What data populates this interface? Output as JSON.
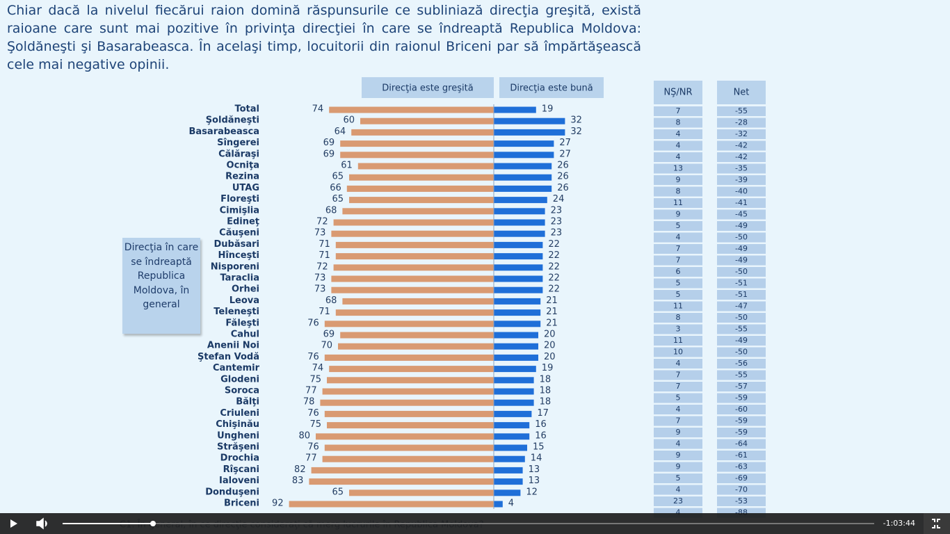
{
  "slide": {
    "title": "Chiar dacă la nivelul fiecărui raion domină răspunsurile ce subliniază direcţia greşită, există raioane care sunt mai pozitive în privinţa direcţiei în care se îndreaptă Republica Moldova: Şoldăneşti şi Basarabeasca. În acelaşi timp, locuitorii din raionul Briceni par să împărtăşească cele mai negative opinii.",
    "side_label": "Direcţia în care se îndreaptă Republica Moldova, în general",
    "footnote": "C1. În general, în ce direcţie consideraţi că merg lucrurile în Republica Moldova?"
  },
  "chart_data": {
    "type": "bar",
    "orientation": "diverging",
    "categories": [
      "Total",
      "Şoldăneşti",
      "Basarabeasca",
      "Sîngerei",
      "Călăraşi",
      "Ocniţa",
      "Rezina",
      "UTAG",
      "Floreşti",
      "Cimişlia",
      "Edineţ",
      "Căuşeni",
      "Dubăsari",
      "Hînceşti",
      "Nisporeni",
      "Taraclia",
      "Orhei",
      "Leova",
      "Teleneşti",
      "Făleşti",
      "Cahul",
      "Anenii Noi",
      "Ştefan Vodă",
      "Cantemir",
      "Glodeni",
      "Soroca",
      "Bălţi",
      "Criuleni",
      "Chişinău",
      "Ungheni",
      "Străşeni",
      "Drochia",
      "Rîşcani",
      "Ialoveni",
      "Donduşeni",
      "Briceni"
    ],
    "series": [
      {
        "name": "Direcţia este greşită",
        "color": "#d99a72",
        "side": "left",
        "values": [
          74,
          60,
          64,
          69,
          69,
          61,
          65,
          66,
          65,
          68,
          72,
          73,
          71,
          71,
          72,
          73,
          73,
          68,
          71,
          76,
          69,
          70,
          76,
          74,
          75,
          77,
          78,
          76,
          75,
          80,
          76,
          77,
          82,
          83,
          65,
          92
        ]
      },
      {
        "name": "Direcţia este bună",
        "color": "#1f6fd8",
        "side": "right",
        "values": [
          19,
          32,
          32,
          27,
          27,
          26,
          26,
          26,
          24,
          23,
          23,
          23,
          22,
          22,
          22,
          22,
          22,
          21,
          21,
          21,
          20,
          20,
          20,
          19,
          18,
          18,
          18,
          17,
          16,
          16,
          15,
          14,
          13,
          13,
          12,
          4
        ]
      }
    ]
  },
  "table": {
    "columns": [
      {
        "header": "NŞ/NR",
        "values": [
          7,
          8,
          4,
          4,
          4,
          13,
          9,
          8,
          11,
          9,
          5,
          4,
          7,
          7,
          6,
          5,
          5,
          11,
          8,
          3,
          11,
          10,
          4,
          7,
          7,
          5,
          4,
          7,
          9,
          4,
          9,
          9,
          5,
          4,
          23,
          4
        ]
      },
      {
        "header": "Net",
        "values": [
          -55,
          -28,
          -32,
          -42,
          -42,
          -35,
          -39,
          -40,
          -41,
          -45,
          -49,
          -50,
          -49,
          -49,
          -50,
          -51,
          -51,
          -47,
          -50,
          -55,
          -49,
          -50,
          -56,
          -55,
          -57,
          -59,
          -60,
          -59,
          -59,
          -64,
          -61,
          -63,
          -69,
          -70,
          -53,
          -88
        ]
      }
    ]
  },
  "player": {
    "time": "-1:03:44"
  }
}
